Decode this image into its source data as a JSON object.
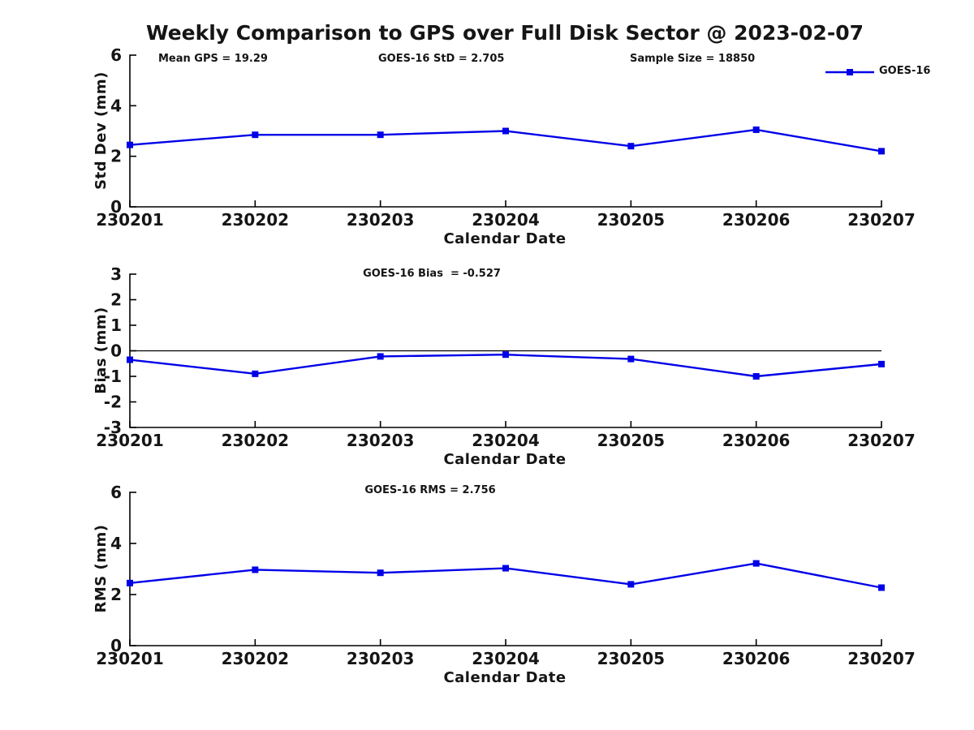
{
  "title": "Weekly Comparison to GPS over Full Disk Sector @ 2023-02-07",
  "colors": {
    "series_line": "#0000E8",
    "axis": "#000000",
    "text": "#151515",
    "background": "#ffffff"
  },
  "legend": {
    "label": "GOES-16",
    "position": "top-right",
    "marker": "filled-square"
  },
  "chart_data": [
    {
      "type": "line",
      "name": "std-dev",
      "categories": [
        "230201",
        "230202",
        "230203",
        "230204",
        "230205",
        "230206",
        "230207"
      ],
      "series": [
        {
          "name": "GOES-16",
          "values": [
            2.45,
            2.85,
            2.85,
            3.0,
            2.4,
            3.05,
            2.2
          ]
        }
      ],
      "xlabel": "Calendar Date",
      "ylabel": "Std Dev (mm)",
      "ylim": [
        0,
        6
      ],
      "yticks": [
        0,
        2,
        4,
        6
      ],
      "grid": false,
      "annotations": [
        "Mean GPS = 19.29",
        "GOES-16 StD = 2.705",
        "Sample Size = 18850"
      ]
    },
    {
      "type": "line",
      "name": "bias",
      "categories": [
        "230201",
        "230202",
        "230203",
        "230204",
        "230205",
        "230206",
        "230207"
      ],
      "series": [
        {
          "name": "GOES-16",
          "values": [
            -0.35,
            -0.9,
            -0.22,
            -0.15,
            -0.32,
            -1.0,
            -0.52
          ]
        }
      ],
      "xlabel": "Calendar Date",
      "ylabel": "Bias (mm)",
      "ylim": [
        -3,
        3
      ],
      "yticks": [
        -3,
        -2,
        -1,
        0,
        1,
        2,
        3
      ],
      "zero_line": true,
      "grid": false,
      "annotation": "GOES-16 Bias  = -0.527"
    },
    {
      "type": "line",
      "name": "rms",
      "categories": [
        "230201",
        "230202",
        "230203",
        "230204",
        "230205",
        "230206",
        "230207"
      ],
      "series": [
        {
          "name": "GOES-16",
          "values": [
            2.45,
            2.97,
            2.85,
            3.03,
            2.4,
            3.22,
            2.27
          ]
        }
      ],
      "xlabel": "Calendar Date",
      "ylabel": "RMS (mm)",
      "ylim": [
        0,
        6
      ],
      "yticks": [
        0,
        2,
        4,
        6
      ],
      "grid": false,
      "annotation": "GOES-16 RMS = 2.756"
    }
  ]
}
